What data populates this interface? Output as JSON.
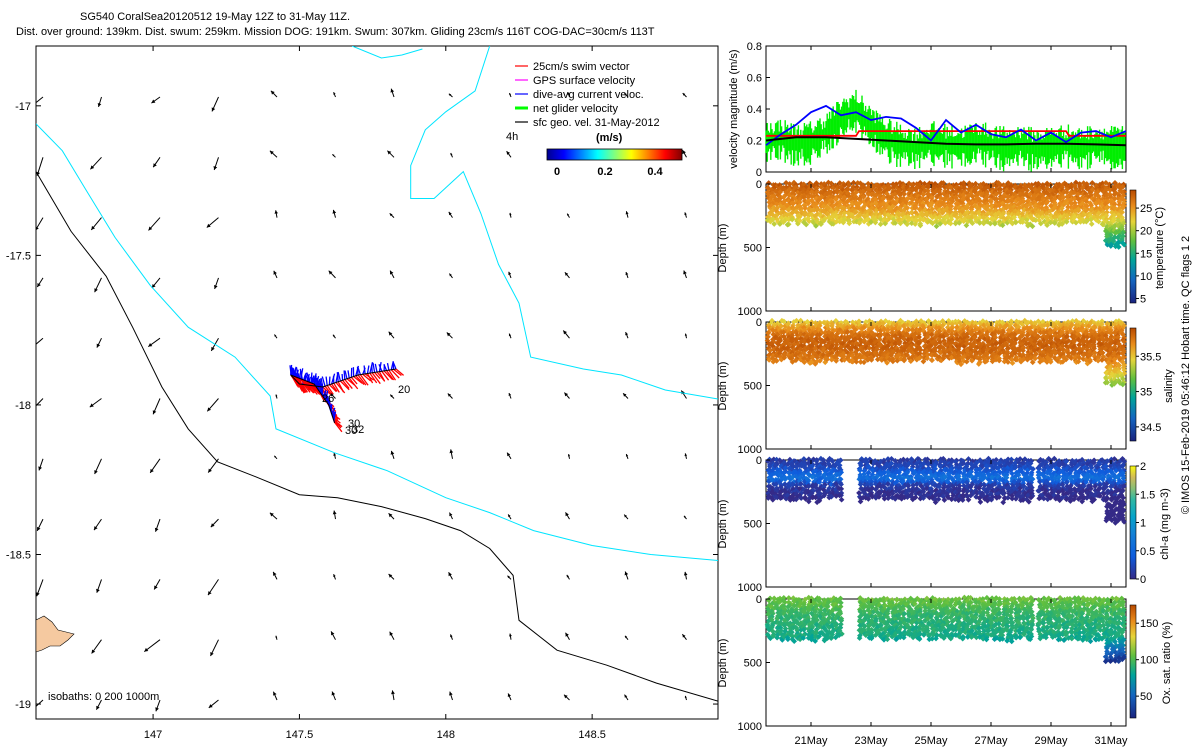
{
  "header": {
    "line1": "SG540 CoralSea20120512 19-May 12Z to 31-May 11Z.",
    "line2": "Dist. over ground: 139km. Dist. swum: 259km. Mission DOG: 191km. Swum: 307km. Gliding 23cm/s 116T COG-DAC=30cm/s 113T"
  },
  "credit": "© IMOS 15-Feb-2019 05:46:12 Hobart time. QC flags 1  2",
  "chart_data": [
    {
      "type": "scatter",
      "subtype": "map",
      "xlim": [
        146.6,
        148.93
      ],
      "ylim": [
        -19.05,
        -16.8
      ],
      "xticks": [
        "147",
        "147.5",
        "148",
        "148.5"
      ],
      "xtick_values": [
        147,
        147.5,
        148,
        148.5
      ],
      "yticks": [
        "-17",
        "-17.5",
        "-18",
        "-18.5",
        "-19"
      ],
      "ytick_values": [
        -17,
        -17.5,
        -18,
        -18.5,
        -19
      ],
      "legend": [
        {
          "label": "25cm/s swim vector",
          "color": "#ff0000"
        },
        {
          "label": "GPS surface velocity",
          "color": "#ff00ff"
        },
        {
          "label": "dive-avg current veloc.",
          "color": "#0000ff"
        },
        {
          "label": "net glider velocity",
          "color": "#00ff00"
        },
        {
          "label": "sfc geo. vel. 31-May-2012",
          "color": "#000000"
        }
      ],
      "legend_extra": "4h",
      "colorbar": {
        "title": "(m/s)",
        "ticks": [
          "0",
          "0.2",
          "0.4"
        ],
        "tick_values": [
          0,
          0.2,
          0.4
        ],
        "range": [
          0,
          0.5
        ]
      },
      "isobaths_label": "isobaths: 0   200  1000m",
      "track_labels": [
        "20",
        "30",
        "30",
        "32",
        "26"
      ],
      "track": [
        [
          147.83,
          -17.88
        ],
        [
          147.7,
          -17.9
        ],
        [
          147.58,
          -17.94
        ],
        [
          147.5,
          -17.93
        ],
        [
          147.47,
          -17.9
        ],
        [
          147.55,
          -17.93
        ],
        [
          147.6,
          -18.0
        ],
        [
          147.62,
          -18.06
        ]
      ],
      "isobath_1000m": [
        [
          146.6,
          -17.22
        ],
        [
          146.72,
          -17.42
        ],
        [
          146.84,
          -17.57
        ],
        [
          146.93,
          -17.74
        ],
        [
          147.03,
          -17.94
        ],
        [
          147.12,
          -18.08
        ],
        [
          147.22,
          -18.19
        ],
        [
          147.35,
          -18.24
        ],
        [
          147.5,
          -18.3
        ],
        [
          147.63,
          -18.31
        ],
        [
          147.78,
          -18.34
        ],
        [
          147.93,
          -18.38
        ],
        [
          148.05,
          -18.42
        ],
        [
          148.15,
          -18.48
        ],
        [
          148.23,
          -18.57
        ],
        [
          148.25,
          -18.72
        ],
        [
          148.38,
          -18.82
        ],
        [
          148.55,
          -18.87
        ],
        [
          148.72,
          -18.93
        ],
        [
          148.93,
          -18.99
        ]
      ],
      "isobath_200m": [
        [
          146.6,
          -17.06
        ],
        [
          146.69,
          -17.15
        ],
        [
          146.77,
          -17.28
        ],
        [
          146.87,
          -17.44
        ],
        [
          146.99,
          -17.6
        ],
        [
          147.12,
          -17.74
        ],
        [
          147.28,
          -17.84
        ],
        [
          147.4,
          -17.97
        ],
        [
          147.42,
          -18.08
        ],
        [
          147.62,
          -18.16
        ],
        [
          147.8,
          -18.22
        ],
        [
          148.0,
          -18.31
        ],
        [
          148.15,
          -18.36
        ],
        [
          148.3,
          -18.42
        ],
        [
          148.5,
          -18.47
        ],
        [
          148.7,
          -18.5
        ],
        [
          148.93,
          -18.52
        ]
      ],
      "coast_upper": [
        [
          147.68,
          -16.8
        ],
        [
          147.78,
          -16.84
        ],
        [
          147.85,
          -16.83
        ],
        [
          147.92,
          -16.81
        ]
      ],
      "coast_east": [
        [
          148.15,
          -16.8
        ],
        [
          148.1,
          -16.95
        ],
        [
          148.0,
          -17.02
        ],
        [
          147.93,
          -17.08
        ],
        [
          147.88,
          -17.2
        ],
        [
          147.88,
          -17.31
        ],
        [
          147.96,
          -17.31
        ],
        [
          148.06,
          -17.22
        ],
        [
          148.12,
          -17.36
        ],
        [
          148.18,
          -17.53
        ],
        [
          148.25,
          -17.66
        ],
        [
          148.29,
          -17.84
        ],
        [
          148.47,
          -17.88
        ],
        [
          148.6,
          -17.9
        ],
        [
          148.75,
          -17.95
        ],
        [
          148.93,
          -17.98
        ]
      ]
    },
    {
      "type": "line",
      "ylabel": "velocity magnitude (m/s)",
      "ylim": [
        0,
        0.8
      ],
      "yticks": [
        "0",
        "0.2",
        "0.4",
        "0.6",
        "0.8"
      ],
      "ytick_values": [
        0,
        0.2,
        0.4,
        0.6,
        0.8
      ],
      "xlim": [
        19.5,
        31.5
      ],
      "series": [
        {
          "color": "#ff0000",
          "x": [
            19.5,
            22.5,
            22.6,
            29.5,
            29.6,
            31.5
          ],
          "values": [
            0.23,
            0.23,
            0.26,
            0.26,
            0.23,
            0.23
          ]
        },
        {
          "color": "#0000ff",
          "x": [
            19.5,
            20.0,
            20.5,
            21.0,
            21.5,
            22.0,
            22.5,
            23.0,
            23.5,
            24.0,
            24.5,
            25.0,
            25.5,
            26.0,
            26.5,
            27.0,
            27.5,
            28.0,
            28.5,
            29.0,
            29.5,
            30.0,
            30.5,
            31.0,
            31.5
          ],
          "values": [
            0.17,
            0.24,
            0.3,
            0.38,
            0.42,
            0.36,
            0.38,
            0.33,
            0.35,
            0.34,
            0.28,
            0.2,
            0.33,
            0.25,
            0.3,
            0.24,
            0.22,
            0.27,
            0.2,
            0.25,
            0.19,
            0.25,
            0.26,
            0.22,
            0.26
          ]
        },
        {
          "color": "#00ff00",
          "x": [
            19.5,
            20.0,
            20.5,
            21.0,
            21.5,
            22.0,
            22.5,
            23.0,
            23.5,
            24.0,
            24.5,
            25.0,
            25.5,
            26.0,
            26.5,
            27.0,
            27.5,
            28.0,
            28.5,
            29.0,
            29.5,
            30.0,
            30.5,
            31.0,
            31.5
          ],
          "values": [
            0.2,
            0.22,
            0.18,
            0.2,
            0.25,
            0.35,
            0.4,
            0.3,
            0.22,
            0.18,
            0.16,
            0.2,
            0.18,
            0.17,
            0.2,
            0.18,
            0.16,
            0.18,
            0.15,
            0.17,
            0.18,
            0.16,
            0.18,
            0.17,
            0.17
          ]
        },
        {
          "color": "#000000",
          "x": [
            19.5,
            20.5,
            21.5,
            22.5,
            23.5,
            24.5,
            25.5,
            26.5,
            27.5,
            28.5,
            29.5,
            30.5,
            31.5
          ],
          "values": [
            0.2,
            0.22,
            0.22,
            0.21,
            0.2,
            0.19,
            0.18,
            0.175,
            0.175,
            0.18,
            0.18,
            0.175,
            0.17
          ]
        }
      ]
    },
    {
      "type": "heatmap",
      "ylabel": "Depth (m)",
      "clabel": "temperature (°C)",
      "ylim": [
        1000,
        0
      ],
      "yticks": [
        "0",
        "500",
        "1000"
      ],
      "ytick_values": [
        0,
        500,
        1000
      ],
      "crange": [
        4,
        29
      ],
      "cticks": [
        "5",
        "10",
        "15",
        "20",
        "25"
      ],
      "ctick_values": [
        5,
        10,
        15,
        20,
        25
      ],
      "profile_depth": [
        0,
        50,
        100,
        150,
        200,
        250,
        300
      ],
      "profile_values": [
        28,
        27,
        26,
        25,
        24,
        22,
        20
      ]
    },
    {
      "type": "heatmap",
      "ylabel": "Depth (m)",
      "clabel": "salinity",
      "ylim": [
        1000,
        0
      ],
      "yticks": [
        "0",
        "500",
        "1000"
      ],
      "ytick_values": [
        0,
        500,
        1000
      ],
      "crange": [
        34.3,
        35.9
      ],
      "cticks": [
        "34.5",
        "35",
        "35.5"
      ],
      "ctick_values": [
        34.5,
        35,
        35.5
      ],
      "profile_depth": [
        0,
        50,
        100,
        150,
        200,
        250,
        300
      ],
      "profile_values": [
        35.4,
        35.6,
        35.75,
        35.8,
        35.8,
        35.75,
        35.7
      ]
    },
    {
      "type": "heatmap",
      "ylabel": "Depth (m)",
      "clabel": "chl-a (mg m-3)",
      "ylim": [
        1000,
        0
      ],
      "yticks": [
        "0",
        "500",
        "1000"
      ],
      "ytick_values": [
        0,
        500,
        1000
      ],
      "crange": [
        0,
        2
      ],
      "cticks": [
        "0",
        "0.5",
        "1",
        "1.5",
        "2"
      ],
      "ctick_values": [
        0,
        0.5,
        1,
        1.5,
        2
      ],
      "profile_depth": [
        0,
        50,
        100,
        150,
        200,
        250,
        300
      ],
      "profile_values": [
        0.1,
        0.15,
        0.3,
        0.45,
        0.1,
        0.05,
        0.02
      ]
    },
    {
      "type": "heatmap",
      "ylabel": "Depth (m)",
      "clabel": "Ox. sat. ratio (%)",
      "ylim": [
        1000,
        0
      ],
      "yticks": [
        "0",
        "500",
        "1000"
      ],
      "ytick_values": [
        0,
        500,
        1000
      ],
      "crange": [
        20,
        175
      ],
      "cticks": [
        "50",
        "100",
        "150"
      ],
      "ctick_values": [
        50,
        100,
        150
      ],
      "profile_depth": [
        0,
        50,
        100,
        150,
        200,
        250,
        300
      ],
      "profile_values": [
        100,
        95,
        88,
        85,
        82,
        80,
        78
      ]
    }
  ],
  "time_axis": {
    "xticks": [
      "21May",
      "23May",
      "25May",
      "27May",
      "29May",
      "31May"
    ],
    "tick_values": [
      21,
      23,
      25,
      27,
      29,
      31
    ]
  }
}
